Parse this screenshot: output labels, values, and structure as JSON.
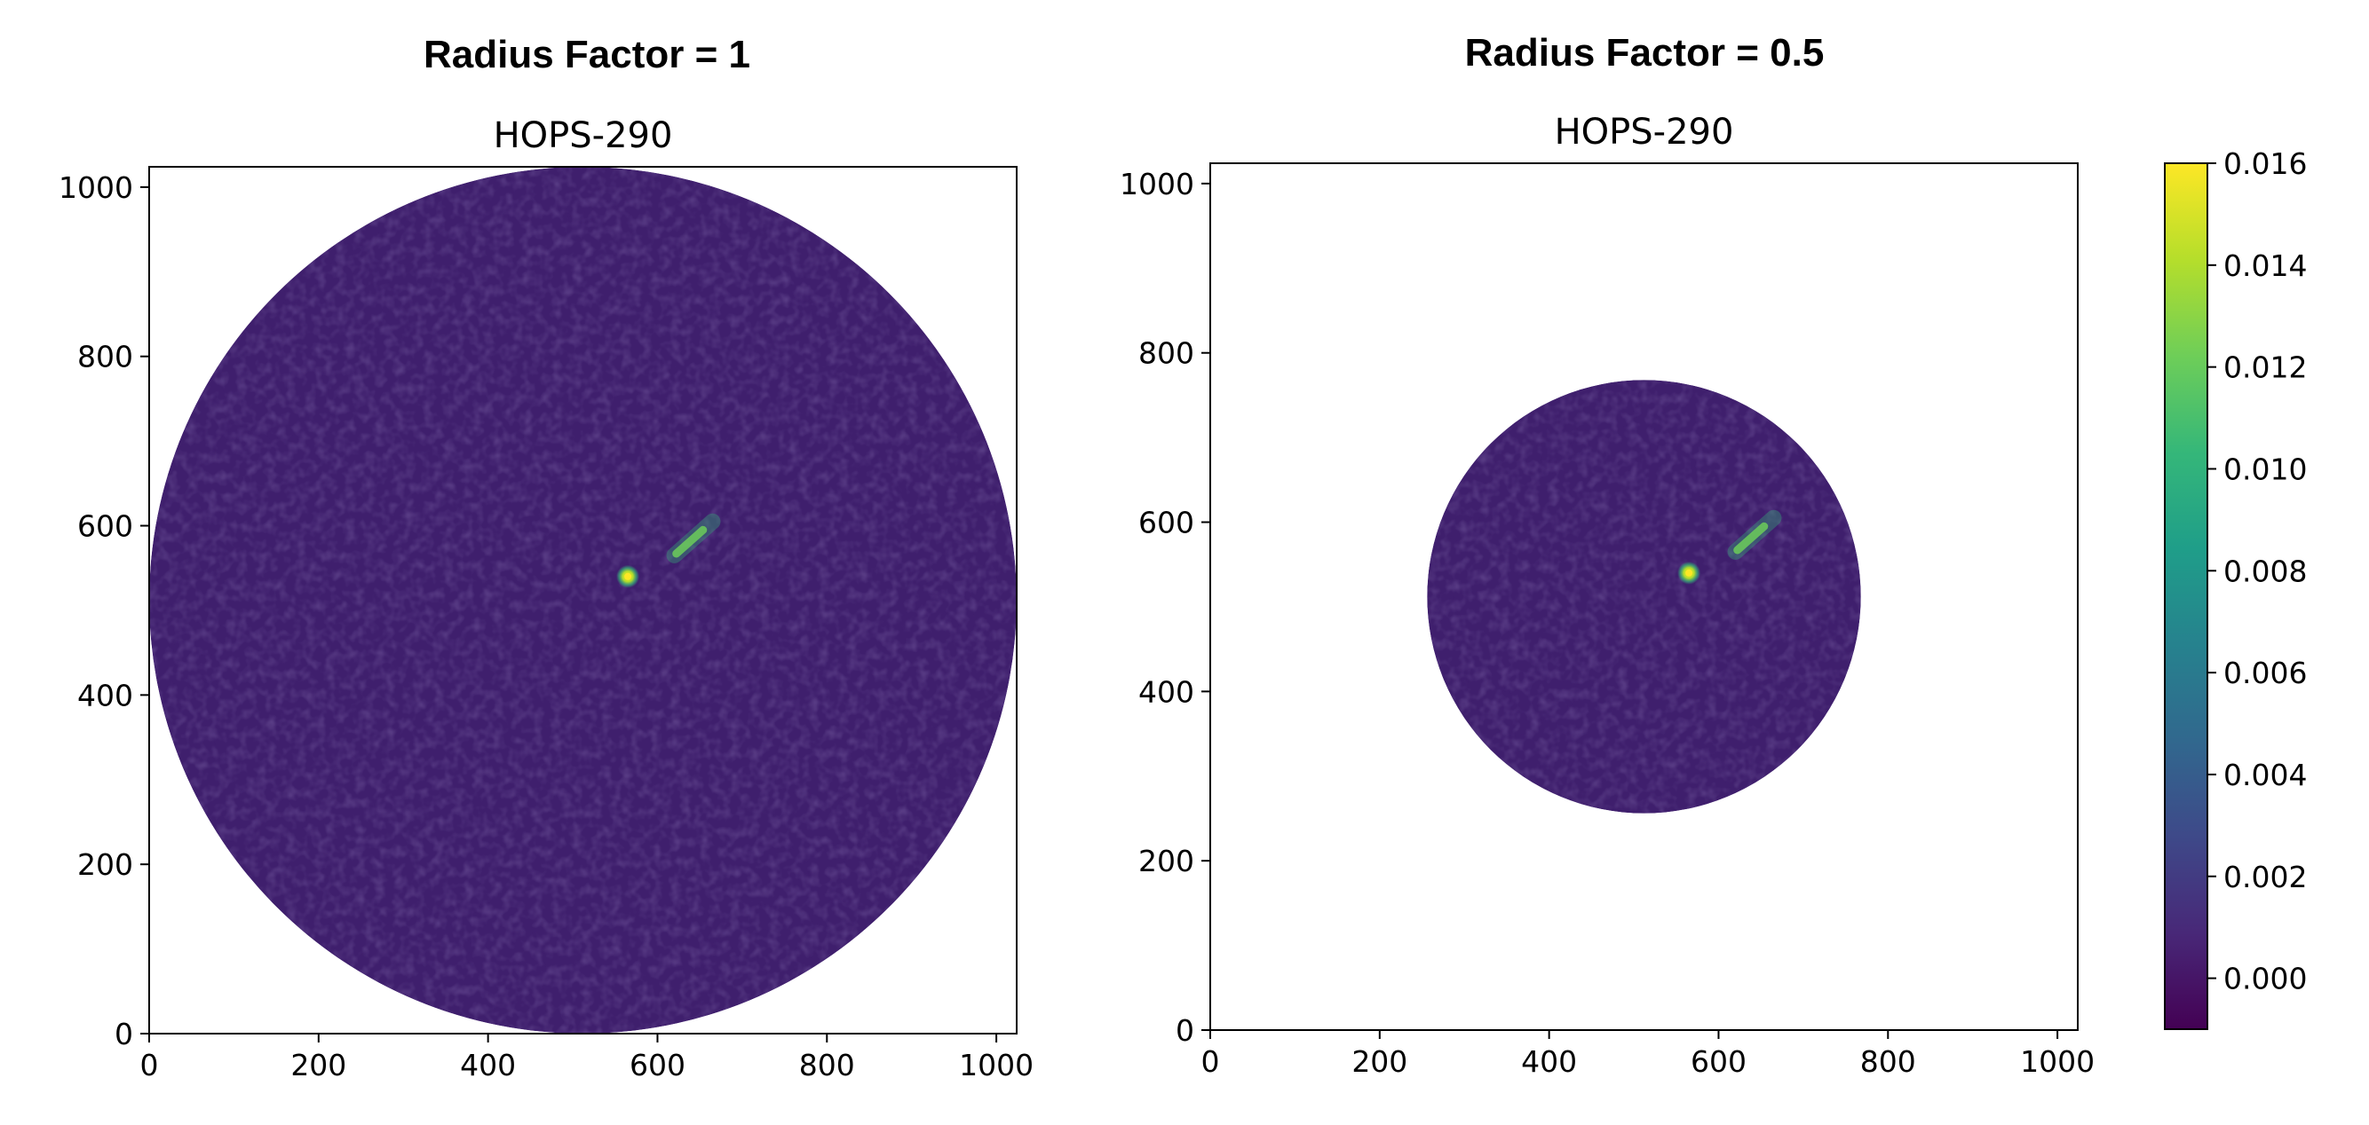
{
  "figure_titles": [
    "Radius Factor = 1",
    "Radius Factor = 0.5"
  ],
  "colors": {
    "background": "#3f1f6d",
    "background_light": "#46337e",
    "jet": "#35b779",
    "jet_bright": "#6ccd5a",
    "core": "#fde725"
  },
  "chart_data": [
    {
      "type": "heatmap",
      "title": "HOPS-290",
      "xlim": [
        0,
        1024
      ],
      "ylim": [
        0,
        1024
      ],
      "xticks": [
        "0",
        "200",
        "400",
        "600",
        "800",
        "1000"
      ],
      "yticks": [
        "0",
        "200",
        "400",
        "600",
        "800",
        "1000"
      ],
      "mask": {
        "shape": "circle",
        "center": [
          512,
          512
        ],
        "radius": 512
      },
      "features": [
        {
          "kind": "point-source",
          "x": 565,
          "y": 540,
          "value": 0.016
        },
        {
          "kind": "jet",
          "from": [
            620,
            565
          ],
          "to": [
            665,
            605
          ],
          "value": 0.01
        }
      ]
    },
    {
      "type": "heatmap",
      "title": "HOPS-290",
      "xlim": [
        0,
        1024
      ],
      "ylim": [
        0,
        1024
      ],
      "xticks": [
        "0",
        "200",
        "400",
        "600",
        "800",
        "1000"
      ],
      "yticks": [
        "0",
        "200",
        "400",
        "600",
        "800",
        "1000"
      ],
      "mask": {
        "shape": "circle",
        "center": [
          512,
          512
        ],
        "radius": 256
      },
      "features": [
        {
          "kind": "point-source",
          "x": 565,
          "y": 540,
          "value": 0.016
        },
        {
          "kind": "jet",
          "from": [
            620,
            565
          ],
          "to": [
            665,
            605
          ],
          "value": 0.01
        }
      ]
    },
    {
      "type": "colorbar",
      "range": [
        -0.001,
        0.016
      ],
      "ticks": [
        0.0,
        0.002,
        0.004,
        0.006,
        0.008,
        0.01,
        0.012,
        0.014,
        0.016
      ],
      "ticklabels": [
        "0.000",
        "0.002",
        "0.004",
        "0.006",
        "0.008",
        "0.010",
        "0.012",
        "0.014",
        "0.016"
      ],
      "colormap": "viridis"
    }
  ]
}
